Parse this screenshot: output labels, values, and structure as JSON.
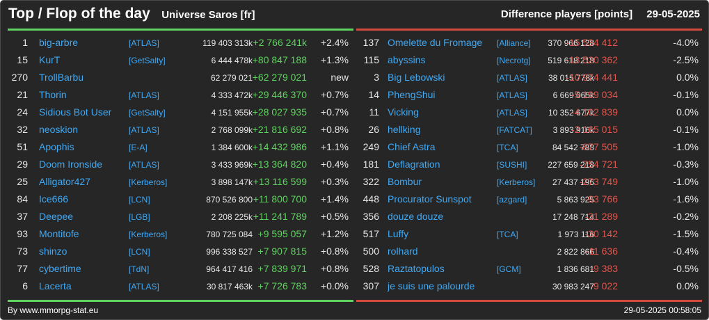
{
  "header": {
    "title": "Top / Flop of the day",
    "universe": "Universe Saros [fr]",
    "metric": "Difference players [points]",
    "date": "29-05-2025"
  },
  "colors": {
    "background": "#262626",
    "top_accent": "#5fd35f",
    "flop_accent": "#d44a3f",
    "name_color": "#3fa9f5",
    "positive_diff": "#5fd35f",
    "negative_diff": "#e0554c"
  },
  "top": [
    {
      "rank": "1",
      "name": "big-arbre",
      "alliance": "[ATLAS]",
      "points": "119 403 313k",
      "diff": "+2 766 241k",
      "pct": "+2.4%"
    },
    {
      "rank": "15",
      "name": "KurT",
      "alliance": "[GetSalty]",
      "points": "6 444 478k",
      "diff": "+80 847 188",
      "pct": "+1.3%"
    },
    {
      "rank": "270",
      "name": "TrollBarbu",
      "alliance": "",
      "points": "62 279 021",
      "diff": "+62 279 021",
      "pct": "new"
    },
    {
      "rank": "21",
      "name": "Thorin",
      "alliance": "[ATLAS]",
      "points": "4 333 472k",
      "diff": "+29 446 370",
      "pct": "+0.7%"
    },
    {
      "rank": "24",
      "name": "Sidious Bot User",
      "alliance": "[GetSalty]",
      "points": "4 151 955k",
      "diff": "+28 027 935",
      "pct": "+0.7%"
    },
    {
      "rank": "32",
      "name": "neoskion",
      "alliance": "[ATLAS]",
      "points": "2 768 099k",
      "diff": "+21 816 692",
      "pct": "+0.8%"
    },
    {
      "rank": "51",
      "name": "Apophis",
      "alliance": "[E-A]",
      "points": "1 384 600k",
      "diff": "+14 432 986",
      "pct": "+1.1%"
    },
    {
      "rank": "29",
      "name": "Doom Ironside",
      "alliance": "[ATLAS]",
      "points": "3 433 969k",
      "diff": "+13 364 820",
      "pct": "+0.4%"
    },
    {
      "rank": "25",
      "name": "Alligator427",
      "alliance": "[Kerberos]",
      "points": "3 898 147k",
      "diff": "+13 116 599",
      "pct": "+0.3%"
    },
    {
      "rank": "84",
      "name": "Ice666",
      "alliance": "[LCN]",
      "points": "870 526 800",
      "diff": "+11 800 700",
      "pct": "+1.4%"
    },
    {
      "rank": "37",
      "name": "Deepee",
      "alliance": "[LGB]",
      "points": "2 208 225k",
      "diff": "+11 241 789",
      "pct": "+0.5%"
    },
    {
      "rank": "93",
      "name": "Montitofe",
      "alliance": "[Kerberos]",
      "points": "780 725 084",
      "diff": "+9 595 057",
      "pct": "+1.2%"
    },
    {
      "rank": "73",
      "name": "shinzo",
      "alliance": "[LCN]",
      "points": "996 338 527",
      "diff": "+7 907 815",
      "pct": "+0.8%"
    },
    {
      "rank": "77",
      "name": "cybertime",
      "alliance": "[TdN]",
      "points": "964 417 416",
      "diff": "+7 839 971",
      "pct": "+0.8%"
    },
    {
      "rank": "6",
      "name": "Lacerta",
      "alliance": "[ATLAS]",
      "points": "30 817 463k",
      "diff": "+7 726 783",
      "pct": "+0.0%"
    }
  ],
  "flop": [
    {
      "rank": "137",
      "name": "Omelette du Fromage",
      "alliance": "[Alliance]",
      "points": "370 966 128",
      "diff": "-15 534 412",
      "pct": "-4.0%"
    },
    {
      "rank": "115",
      "name": "abyssins",
      "alliance": "[Necrotg]",
      "points": "519 618 218",
      "diff": "-13 520 362",
      "pct": "-2.5%"
    },
    {
      "rank": "3",
      "name": "Big Lebowski",
      "alliance": "[ATLAS]",
      "points": "38 015 778k",
      "diff": "-10 974 441",
      "pct": "0.0%"
    },
    {
      "rank": "14",
      "name": "PhengShui",
      "alliance": "[ATLAS]",
      "points": "6 669 065k",
      "diff": "-5 199 034",
      "pct": "-0.1%"
    },
    {
      "rank": "11",
      "name": "Vicking",
      "alliance": "[ATLAS]",
      "points": "10 352 677k",
      "diff": "-4 102 839",
      "pct": "0.0%"
    },
    {
      "rank": "26",
      "name": "hellking",
      "alliance": "[FATCAT]",
      "points": "3 893 916k",
      "diff": "-2 165 015",
      "pct": "-0.1%"
    },
    {
      "rank": "249",
      "name": "Chief Astra",
      "alliance": "[TCA]",
      "points": "84 542 788",
      "diff": "-877 505",
      "pct": "-1.0%"
    },
    {
      "rank": "181",
      "name": "Deflagration",
      "alliance": "[SUSHI]",
      "points": "227 659 218",
      "diff": "-754 721",
      "pct": "-0.3%"
    },
    {
      "rank": "322",
      "name": "Bombur",
      "alliance": "[Kerberos]",
      "points": "27 437 196",
      "diff": "-273 749",
      "pct": "-1.0%"
    },
    {
      "rank": "448",
      "name": "Procurator Sunspot",
      "alliance": "[azgard]",
      "points": "5 863 925",
      "diff": "-93 766",
      "pct": "-1.6%"
    },
    {
      "rank": "356",
      "name": "douze douze",
      "alliance": "",
      "points": "17 248 714",
      "diff": "-31 289",
      "pct": "-0.2%"
    },
    {
      "rank": "517",
      "name": "Luffy",
      "alliance": "[TCA]",
      "points": "1 973 116",
      "diff": "-30 142",
      "pct": "-1.5%"
    },
    {
      "rank": "500",
      "name": "rolhard",
      "alliance": "",
      "points": "2 822 866",
      "diff": "-11 636",
      "pct": "-0.4%"
    },
    {
      "rank": "528",
      "name": "Raztatopulos",
      "alliance": "[GCM]",
      "points": "1 836 681",
      "diff": "-9 383",
      "pct": "-0.5%"
    },
    {
      "rank": "307",
      "name": "je suis une palourde",
      "alliance": "",
      "points": "30 983 247",
      "diff": "-9 022",
      "pct": "0.0%"
    }
  ],
  "footer": {
    "source": "By www.mmorpg-stat.eu",
    "timestamp": "29-05-2025 00:58:05"
  }
}
